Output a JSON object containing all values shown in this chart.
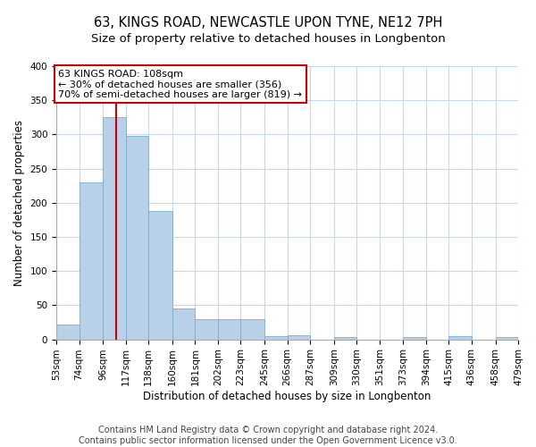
{
  "title1": "63, KINGS ROAD, NEWCASTLE UPON TYNE, NE12 7PH",
  "title2": "Size of property relative to detached houses in Longbenton",
  "xlabel": "Distribution of detached houses by size in Longbenton",
  "ylabel": "Number of detached properties",
  "footer1": "Contains HM Land Registry data © Crown copyright and database right 2024.",
  "footer2": "Contains public sector information licensed under the Open Government Licence v3.0.",
  "annotation_line1": "63 KINGS ROAD: 108sqm",
  "annotation_line2": "← 30% of detached houses are smaller (356)",
  "annotation_line3": "70% of semi-detached houses are larger (819) →",
  "property_size": 108,
  "bins_start": [
    53,
    74,
    96,
    117,
    138,
    160,
    181,
    202,
    223,
    245,
    266,
    287,
    309,
    330,
    351,
    373,
    394,
    415,
    436,
    458
  ],
  "bins_end": [
    74,
    96,
    117,
    138,
    160,
    181,
    202,
    223,
    245,
    266,
    287,
    309,
    330,
    351,
    373,
    394,
    415,
    436,
    458,
    479
  ],
  "bin_labels": [
    "53sqm",
    "74sqm",
    "96sqm",
    "117sqm",
    "138sqm",
    "160sqm",
    "181sqm",
    "202sqm",
    "223sqm",
    "245sqm",
    "266sqm",
    "287sqm",
    "309sqm",
    "330sqm",
    "351sqm",
    "373sqm",
    "394sqm",
    "415sqm",
    "436sqm",
    "458sqm",
    "479sqm"
  ],
  "values": [
    22,
    230,
    325,
    298,
    188,
    45,
    30,
    30,
    30,
    5,
    6,
    0,
    3,
    0,
    0,
    3,
    0,
    5,
    0,
    3
  ],
  "bar_color": "#b8d0e8",
  "bar_edge_color": "#7aadd4",
  "red_line_color": "#cc0000",
  "annotation_box_color": "#cc0000",
  "grid_color": "#c8d8ea",
  "background_color": "#ffffff",
  "ylim": [
    0,
    400
  ],
  "yticks": [
    0,
    50,
    100,
    150,
    200,
    250,
    300,
    350,
    400
  ],
  "title1_fontsize": 10.5,
  "title2_fontsize": 9.5,
  "axis_label_fontsize": 8.5,
  "tick_fontsize": 7.5,
  "annotation_fontsize": 8,
  "footer_fontsize": 7
}
